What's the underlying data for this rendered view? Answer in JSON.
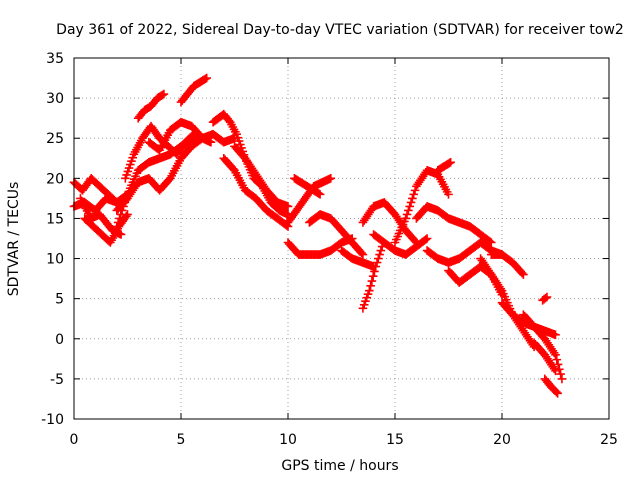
{
  "chart_data": {
    "type": "scatter",
    "title": "Day 361 of 2022, Sidereal Day-to-day VTEC variation (SDTVAR) for receiver tow2",
    "xlabel": "GPS time / hours",
    "ylabel": "SDTVAR / TECUs",
    "xlim": [
      0,
      25
    ],
    "ylim": [
      -10,
      35
    ],
    "grid": true,
    "marker": "+",
    "color": "#ff0000",
    "x_ticks": [
      "0",
      "5",
      "10",
      "15",
      "20",
      "25"
    ],
    "y_ticks": [
      "-10",
      "-5",
      "0",
      "5",
      "10",
      "15",
      "20",
      "25",
      "30",
      "35"
    ],
    "series": [
      {
        "name": "SDTVAR",
        "tracks": [
          {
            "x": [
              0.0,
              0.5,
              1.0,
              1.5,
              2.0,
              2.5
            ],
            "y": [
              16.5,
              17.0,
              16.0,
              17.5,
              17.0,
              18.0
            ]
          },
          {
            "x": [
              0.0,
              0.4,
              0.8,
              1.2,
              1.6,
              2.0
            ],
            "y": [
              19.5,
              18.5,
              20.0,
              19.0,
              18.0,
              17.0
            ]
          },
          {
            "x": [
              0.5,
              0.9,
              1.3,
              1.7,
              2.1,
              2.5
            ],
            "y": [
              15.0,
              14.0,
              13.0,
              12.0,
              14.0,
              15.5
            ]
          },
          {
            "x": [
              0.3,
              0.8,
              1.2,
              1.8,
              2.2
            ],
            "y": [
              17.5,
              15.0,
              15.5,
              13.5,
              13.0
            ]
          },
          {
            "x": [
              2.0,
              2.5,
              3.0,
              3.5,
              4.0,
              4.5,
              5.0,
              5.5,
              6.0
            ],
            "y": [
              14.0,
              18.0,
              21.0,
              22.0,
              22.5,
              23.0,
              24.0,
              24.5,
              25.0
            ]
          },
          {
            "x": [
              2.4,
              2.8,
              3.2,
              3.6,
              4.0,
              4.4,
              4.8,
              5.2,
              5.6,
              6.0,
              6.4
            ],
            "y": [
              20.0,
              23.0,
              25.0,
              26.5,
              25.0,
              24.0,
              23.0,
              24.5,
              25.5,
              25.0,
              24.5
            ]
          },
          {
            "x": [
              2.0,
              2.5,
              3.0,
              3.5,
              4.0,
              4.5,
              5.0,
              5.5,
              6.0,
              6.5,
              7.0,
              7.5
            ],
            "y": [
              16.0,
              17.5,
              19.5,
              20.0,
              18.5,
              20.0,
              22.5,
              24.0,
              25.0,
              25.5,
              24.5,
              25.0
            ]
          },
          {
            "x": [
              3.0,
              3.3,
              3.6,
              3.9,
              4.2
            ],
            "y": [
              27.5,
              28.5,
              29.0,
              30.0,
              30.5
            ]
          },
          {
            "x": [
              5.0,
              5.3,
              5.6,
              5.9,
              6.2
            ],
            "y": [
              29.5,
              30.5,
              31.5,
              32.0,
              32.5
            ]
          },
          {
            "x": [
              3.5,
              4.0,
              4.5,
              5.0,
              5.5,
              6.0
            ],
            "y": [
              24.5,
              23.5,
              26.0,
              27.0,
              26.5,
              25.0
            ]
          },
          {
            "x": [
              6.5,
              7.0,
              7.3,
              7.6,
              8.0,
              8.4,
              8.8,
              9.2,
              9.6,
              10.0
            ],
            "y": [
              27.0,
              28.0,
              27.0,
              25.5,
              22.5,
              20.0,
              19.0,
              17.0,
              16.0,
              15.5
            ]
          },
          {
            "x": [
              7.0,
              7.5,
              8.0,
              8.5,
              9.0,
              9.5,
              10.0
            ],
            "y": [
              22.5,
              21.0,
              18.5,
              17.5,
              16.0,
              15.0,
              14.0
            ]
          },
          {
            "x": [
              7.5,
              8.0,
              8.5,
              9.0,
              9.5,
              10.0
            ],
            "y": [
              24.0,
              22.5,
              20.5,
              18.5,
              17.0,
              16.5
            ]
          },
          {
            "x": [
              10.0,
              10.4,
              10.8,
              11.2,
              11.6,
              12.0
            ],
            "y": [
              14.5,
              16.0,
              17.5,
              19.0,
              19.5,
              20.0
            ]
          },
          {
            "x": [
              10.3,
              10.6,
              10.9,
              11.2,
              11.5
            ],
            "y": [
              20.0,
              19.5,
              19.0,
              18.5,
              18.0
            ]
          },
          {
            "x": [
              10.0,
              10.5,
              11.0,
              11.5,
              12.0,
              12.5,
              13.0
            ],
            "y": [
              12.0,
              10.5,
              10.5,
              10.5,
              11.0,
              12.0,
              12.5
            ]
          },
          {
            "x": [
              11.0,
              11.5,
              12.0,
              12.5,
              13.0,
              13.5
            ],
            "y": [
              14.5,
              15.5,
              15.0,
              13.5,
              12.0,
              10.5
            ]
          },
          {
            "x": [
              12.5,
              13.0,
              13.5,
              14.0
            ],
            "y": [
              11.0,
              10.0,
              9.5,
              9.0
            ]
          },
          {
            "x": [
              13.5,
              13.8,
              14.1,
              14.4
            ],
            "y": [
              3.8,
              6.0,
              9.0,
              11.5
            ]
          },
          {
            "x": [
              13.5,
              14.0,
              14.5,
              15.0,
              15.5,
              16.0
            ],
            "y": [
              14.5,
              16.5,
              17.0,
              15.5,
              13.5,
              12.0
            ]
          },
          {
            "x": [
              14.0,
              14.5,
              15.0,
              15.5,
              16.0,
              16.5
            ],
            "y": [
              13.0,
              12.0,
              11.0,
              10.5,
              11.5,
              12.5
            ]
          },
          {
            "x": [
              15.0,
              15.5,
              16.0,
              16.5,
              17.0,
              17.5
            ],
            "y": [
              12.0,
              15.0,
              19.0,
              21.0,
              20.5,
              18.0
            ]
          },
          {
            "x": [
              16.0,
              16.5,
              17.0,
              17.5,
              18.0,
              18.5,
              19.0,
              19.5
            ],
            "y": [
              15.0,
              16.5,
              16.0,
              15.0,
              14.5,
              14.0,
              13.0,
              12.0
            ]
          },
          {
            "x": [
              16.5,
              17.0,
              17.5,
              18.0,
              18.5,
              19.0,
              19.5,
              20.0
            ],
            "y": [
              11.0,
              10.0,
              9.5,
              10.0,
              11.0,
              12.0,
              11.0,
              10.5
            ]
          },
          {
            "x": [
              17.0,
              17.3,
              17.6
            ],
            "y": [
              21.0,
              21.5,
              22.0
            ]
          },
          {
            "x": [
              17.5,
              18.0,
              18.5,
              19.0,
              19.5,
              20.0
            ],
            "y": [
              8.5,
              7.0,
              8.0,
              9.0,
              8.0,
              5.5
            ]
          },
          {
            "x": [
              19.0,
              19.5,
              20.0,
              20.5,
              21.0,
              21.5,
              22.0,
              22.5
            ],
            "y": [
              10.0,
              8.0,
              6.0,
              3.0,
              2.0,
              1.5,
              1.0,
              0.5
            ]
          },
          {
            "x": [
              19.5,
              20.0,
              20.5,
              21.0
            ],
            "y": [
              10.5,
              10.5,
              9.5,
              8.0
            ]
          },
          {
            "x": [
              20.0,
              20.5,
              21.0,
              21.5
            ],
            "y": [
              4.5,
              3.0,
              1.0,
              -1.0
            ]
          },
          {
            "x": [
              21.0,
              21.5,
              22.0,
              22.5,
              22.8
            ],
            "y": [
              3.0,
              1.5,
              0.0,
              -2.0,
              -5.0
            ]
          },
          {
            "x": [
              21.5,
              22.0,
              22.5
            ],
            "y": [
              -0.5,
              -2.0,
              -4.0
            ]
          },
          {
            "x": [
              22.0,
              22.3,
              22.6
            ],
            "y": [
              -5.0,
              -6.0,
              -6.8
            ]
          },
          {
            "x": [
              21.9,
              22.1
            ],
            "y": [
              4.8,
              5.2
            ]
          }
        ]
      }
    ]
  }
}
